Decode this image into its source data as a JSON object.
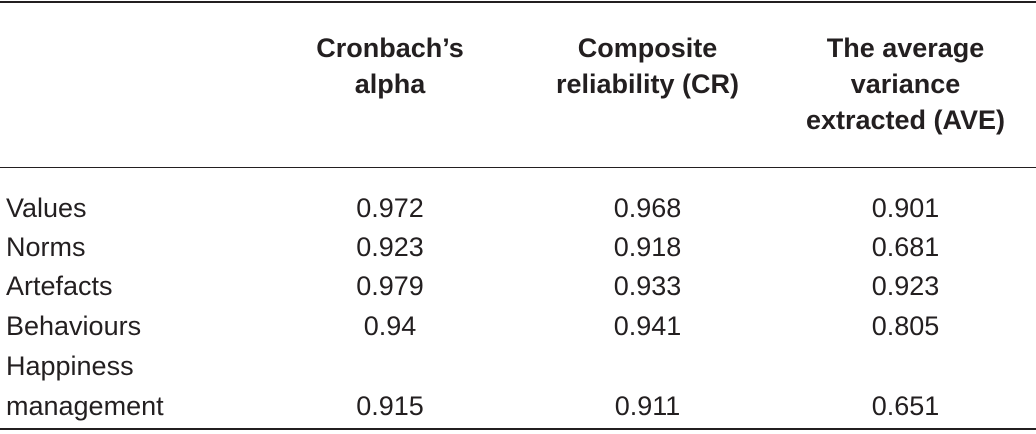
{
  "table": {
    "headers": [
      "",
      "Cronbach’s\nalpha",
      "Composite\nreliability (CR)",
      "The average\nvariance\nextracted (AVE)"
    ],
    "rows": [
      {
        "label": "Values",
        "values": [
          "0.972",
          "0.968",
          "0.901"
        ]
      },
      {
        "label": "Norms",
        "values": [
          "0.923",
          "0.918",
          "0.681"
        ]
      },
      {
        "label": "Artefacts",
        "values": [
          "0.979",
          "0.933",
          "0.923"
        ]
      },
      {
        "label": "Behaviours",
        "values": [
          "0.94",
          "0.941",
          "0.805"
        ]
      },
      {
        "label": "Happiness\nmanagement",
        "values": [
          "0.915",
          "0.911",
          "0.651"
        ]
      }
    ]
  }
}
